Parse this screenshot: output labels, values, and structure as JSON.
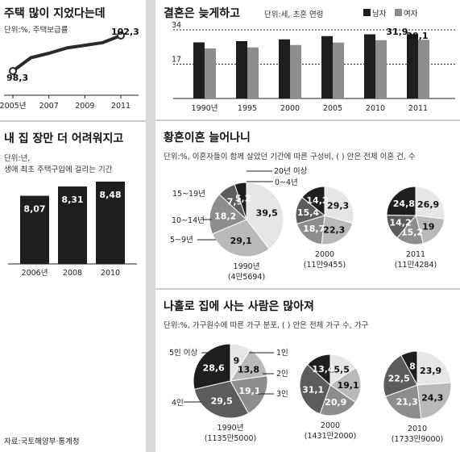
{
  "source": "자료:국토해양부·통계청",
  "colors": {
    "dark": "#1e1e1e",
    "mid": "#5c5c5c",
    "light": "#8d8d8d",
    "pale": "#b9b9b9",
    "white": "#e6e6e6",
    "line": "#2a2a2a",
    "pillar": "#d9d9d9"
  },
  "chart_data": [
    {
      "id": "housing_rate",
      "type": "line",
      "title": "주택 많이 지었다는데",
      "unit": "단위:%, 주택보급률",
      "x": [
        "2005년",
        "2007",
        "2009",
        "2011"
      ],
      "points": [
        {
          "x": 2005,
          "y": 98.3
        },
        {
          "x": 2006,
          "y": 99.8
        },
        {
          "x": 2007,
          "y": 100.3
        },
        {
          "x": 2008,
          "y": 100.9
        },
        {
          "x": 2009,
          "y": 101.2
        },
        {
          "x": 2010,
          "y": 101.5
        },
        {
          "x": 2011,
          "y": 102.3
        }
      ],
      "labels": {
        "first": "98,3",
        "last": "102,3"
      }
    },
    {
      "id": "buy_years",
      "type": "bar",
      "title": "내 집 장만 더 어려워지고",
      "unit": [
        "단위:년,",
        "생애 최초 주택구입에 걸리는 기간"
      ],
      "categories": [
        "2006년",
        "2008",
        "2010"
      ],
      "values": [
        8.07,
        8.31,
        8.48
      ],
      "value_labels": [
        "8,07",
        "8,31",
        "8,48"
      ]
    },
    {
      "id": "marriage_age",
      "type": "bar",
      "title": "결혼은 늦게하고",
      "unit": "단위:세, 초혼 연령",
      "legend": [
        "남자",
        "여자"
      ],
      "categories": [
        "1990년",
        "1995",
        "2000",
        "2005",
        "2010",
        "2011"
      ],
      "series": [
        {
          "name": "남자",
          "values": [
            27.8,
            28.4,
            29.3,
            30.9,
            31.8,
            31.9
          ]
        },
        {
          "name": "여자",
          "values": [
            24.8,
            25.3,
            26.5,
            27.7,
            28.9,
            29.1
          ]
        }
      ],
      "ref_lines": [
        {
          "y": 34,
          "label": "34"
        },
        {
          "y": 17,
          "label": "17"
        }
      ],
      "value_labels": {
        "male_2011": "31,9",
        "female_2011": "29,1"
      }
    },
    {
      "id": "late_divorce",
      "type": "pie",
      "title": "황혼이혼 늘어나니",
      "unit": "단위:%, 이혼자들이 함께 살았던 기간에 따른 구성비, ( ) 안은 전체 이혼 건, 수",
      "categories": [
        "0~4년",
        "5~9년",
        "10~14년",
        "15~19년",
        "20년 이상"
      ],
      "pies": [
        {
          "label": "1990년",
          "sub": "(4만5694)",
          "values": [
            39.5,
            29.1,
            18.2,
            7.9,
            5.2
          ],
          "value_labels": [
            "39,5",
            "29,1",
            "18,2",
            "7,9",
            "5,2"
          ]
        },
        {
          "label": "2000",
          "sub": "(11만9455)",
          "values": [
            29.3,
            22.3,
            18.7,
            15.4,
            14.2
          ],
          "value_labels": [
            "29,3",
            "22,3",
            "18,7",
            "15,4",
            "14,2"
          ]
        },
        {
          "label": "2011",
          "sub": "(11만4284)",
          "values": [
            26.9,
            19,
            15.2,
            14.2,
            24.8
          ],
          "value_labels": [
            "26,9",
            "19",
            "15,2",
            "14,2",
            "24,8"
          ]
        }
      ]
    },
    {
      "id": "household_size",
      "type": "pie",
      "title": "나홀로 집에 사는 사람은 많아져",
      "unit": "단위:%, 가구원수에 따른 가구 분포, ( ) 안은 전체 가구 수, 가구",
      "categories": [
        "1인",
        "2인",
        "3인",
        "4인",
        "5인 이상"
      ],
      "pies": [
        {
          "label": "1990년",
          "sub": "(1135만5000)",
          "values": [
            9,
            13.8,
            19.1,
            29.5,
            28.6
          ],
          "value_labels": [
            "9",
            "13,8",
            "19,1",
            "29,5",
            "28,6"
          ]
        },
        {
          "label": "2000",
          "sub": "(1431만2000)",
          "values": [
            15.5,
            19.1,
            20.9,
            31.1,
            13.4
          ],
          "value_labels": [
            "15,5",
            "19,1",
            "20,9",
            "31,1",
            "13,4"
          ]
        },
        {
          "label": "2010",
          "sub": "(1733만9000)",
          "values": [
            23.9,
            24.3,
            21.3,
            22.5,
            8
          ],
          "value_labels": [
            "23,9",
            "24,3",
            "21,3",
            "22,5",
            "8"
          ]
        }
      ]
    }
  ]
}
